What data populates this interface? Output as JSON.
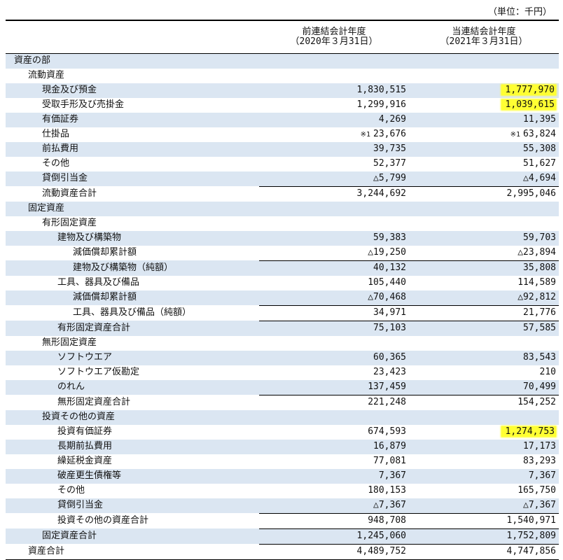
{
  "unit": "（単位：千円）",
  "header": {
    "prev_line1": "前連結会計年度",
    "prev_line2": "（2020年３月31日）",
    "cur_line1": "当連結会計年度",
    "cur_line2": "（2021年３月31日）"
  },
  "rows": [
    {
      "label": "資産の部",
      "indent": 0,
      "prev": "",
      "cur": "",
      "shade": true
    },
    {
      "label": "流動資産",
      "indent": 1,
      "prev": "",
      "cur": ""
    },
    {
      "label": "現金及び預金",
      "indent": 2,
      "prev": "1,830,515",
      "cur": "1,777,970",
      "shade": true,
      "hl_cur": true
    },
    {
      "label": "受取手形及び売掛金",
      "indent": 2,
      "prev": "1,299,916",
      "cur": "1,039,615",
      "hl_cur": true
    },
    {
      "label": "有価証券",
      "indent": 2,
      "prev": "4,269",
      "cur": "11,395",
      "shade": true
    },
    {
      "label": "仕掛品",
      "indent": 2,
      "prev": "23,676",
      "cur": "63,824",
      "prev_note": "※1",
      "cur_note": "※1"
    },
    {
      "label": "前払費用",
      "indent": 2,
      "prev": "39,735",
      "cur": "55,308",
      "shade": true
    },
    {
      "label": "その他",
      "indent": 2,
      "prev": "52,377",
      "cur": "51,627"
    },
    {
      "label": "貸倒引当金",
      "indent": 2,
      "prev": "△5,799",
      "cur": "△4,694",
      "shade": true
    },
    {
      "label": "流動資産合計",
      "indent": 2,
      "prev": "3,244,692",
      "cur": "2,995,046",
      "total": true
    },
    {
      "label": "固定資産",
      "indent": 1,
      "prev": "",
      "cur": "",
      "shade": true
    },
    {
      "label": "有形固定資産",
      "indent": 2,
      "prev": "",
      "cur": ""
    },
    {
      "label": "建物及び構築物",
      "indent": 3,
      "prev": "59,383",
      "cur": "59,703",
      "shade": true
    },
    {
      "label": "減価償却累計額",
      "indent": 4,
      "prev": "△19,250",
      "cur": "△23,894"
    },
    {
      "label": "建物及び構築物（純額）",
      "indent": 4,
      "prev": "40,132",
      "cur": "35,808",
      "shade": true,
      "total": true
    },
    {
      "label": "工具、器具及び備品",
      "indent": 3,
      "prev": "105,440",
      "cur": "114,589"
    },
    {
      "label": "減価償却累計額",
      "indent": 4,
      "prev": "△70,468",
      "cur": "△92,812",
      "shade": true
    },
    {
      "label": "工具、器具及び備品（純額）",
      "indent": 4,
      "prev": "34,971",
      "cur": "21,776",
      "total": true
    },
    {
      "label": "有形固定資産合計",
      "indent": 3,
      "prev": "75,103",
      "cur": "57,585",
      "shade": true,
      "total": true
    },
    {
      "label": "無形固定資産",
      "indent": 2,
      "prev": "",
      "cur": ""
    },
    {
      "label": "ソフトウエア",
      "indent": 3,
      "prev": "60,365",
      "cur": "83,543",
      "shade": true
    },
    {
      "label": "ソフトウエア仮勘定",
      "indent": 3,
      "prev": "23,423",
      "cur": "210"
    },
    {
      "label": "のれん",
      "indent": 3,
      "prev": "137,459",
      "cur": "70,499",
      "shade": true
    },
    {
      "label": "無形固定資産合計",
      "indent": 3,
      "prev": "221,248",
      "cur": "154,252",
      "total": true
    },
    {
      "label": "投資その他の資産",
      "indent": 2,
      "prev": "",
      "cur": "",
      "shade": true
    },
    {
      "label": "投資有価証券",
      "indent": 3,
      "prev": "674,593",
      "cur": "1,274,753",
      "hl_cur": true
    },
    {
      "label": "長期前払費用",
      "indent": 3,
      "prev": "16,879",
      "cur": "17,173",
      "shade": true
    },
    {
      "label": "繰延税金資産",
      "indent": 3,
      "prev": "77,081",
      "cur": "83,293"
    },
    {
      "label": "破産更生債権等",
      "indent": 3,
      "prev": "7,367",
      "cur": "7,367",
      "shade": true
    },
    {
      "label": "その他",
      "indent": 3,
      "prev": "180,153",
      "cur": "165,750"
    },
    {
      "label": "貸倒引当金",
      "indent": 3,
      "prev": "△7,367",
      "cur": "△7,367",
      "shade": true
    },
    {
      "label": "投資その他の資産合計",
      "indent": 3,
      "prev": "948,708",
      "cur": "1,540,971",
      "total": true
    },
    {
      "label": "固定資産合計",
      "indent": 2,
      "prev": "1,245,060",
      "cur": "1,752,809",
      "shade": true,
      "total": true
    },
    {
      "label": "資産合計",
      "indent": 1,
      "prev": "4,489,752",
      "cur": "4,747,856",
      "total": true,
      "grand": true
    }
  ],
  "colors": {
    "shade": "#dbe6f2",
    "highlight": "#ffff33"
  }
}
